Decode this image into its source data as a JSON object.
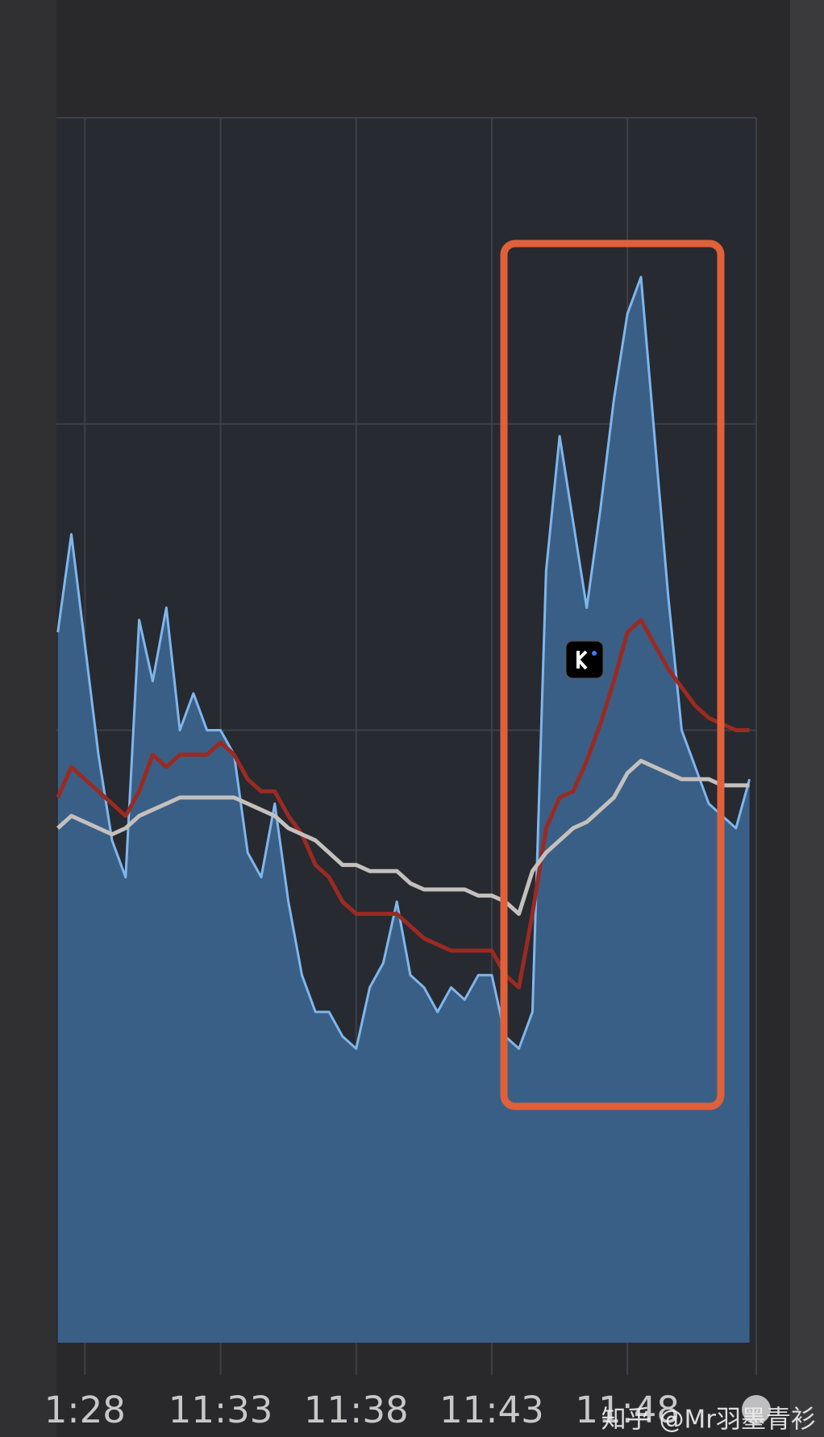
{
  "chart_data": {
    "type": "area-lines",
    "x": [
      27,
      27.5,
      28,
      28.5,
      29,
      29.5,
      30,
      30.5,
      31,
      31.5,
      32,
      32.5,
      33,
      33.5,
      34,
      34.5,
      35,
      35.5,
      36,
      36.5,
      37,
      37.5,
      38,
      38.5,
      39,
      39.5,
      40,
      40.5,
      41,
      41.5,
      42,
      42.5,
      43,
      43.5,
      44,
      44.5,
      45,
      45.5,
      46,
      46.5,
      47,
      47.5,
      48,
      48.5,
      49,
      49.5,
      50,
      50.5,
      51,
      51.5,
      52,
      52.5
    ],
    "series": [
      {
        "color": "#7fb6ec",
        "fill": "#3a5f86",
        "values": [
          58,
          66,
          57,
          48,
          41,
          38,
          59,
          54,
          60,
          50,
          53,
          50,
          50,
          48,
          40,
          38,
          44,
          36,
          30,
          27,
          27,
          25,
          24,
          29,
          31,
          36,
          30,
          29,
          27,
          29,
          28,
          30,
          30,
          25,
          24,
          27,
          63,
          74,
          67,
          60,
          68,
          77,
          84,
          87,
          74,
          61,
          50,
          47,
          44,
          43,
          42,
          46
        ]
      },
      {
        "color": "#9b2a22",
        "values": [
          44.5,
          47,
          46,
          45,
          44,
          43,
          45,
          48,
          47,
          48,
          48,
          48,
          49,
          48,
          46,
          45,
          45,
          43,
          41.5,
          39,
          38,
          36,
          35,
          35,
          35,
          35,
          34,
          33,
          32.5,
          32,
          32,
          32,
          32,
          30,
          29,
          35,
          42,
          44.5,
          45,
          47.5,
          50.5,
          54,
          58,
          59,
          57,
          55,
          53.5,
          52,
          51,
          50.5,
          50,
          50
        ]
      },
      {
        "color": "#c4c0bd",
        "values": [
          42,
          43,
          42.5,
          42,
          41.5,
          42,
          43,
          43.5,
          44,
          44.5,
          44.5,
          44.5,
          44.5,
          44.5,
          44,
          43.5,
          43,
          42,
          41.5,
          41,
          40,
          39,
          39,
          38.5,
          38.5,
          38.5,
          37.5,
          37,
          37,
          37,
          37,
          36.5,
          36.5,
          36,
          35,
          38.5,
          40,
          41,
          42,
          42.5,
          43.5,
          44.5,
          46.5,
          47.5,
          47,
          46.5,
          46,
          46,
          46,
          45.5,
          45.5,
          45.5
        ]
      }
    ],
    "xlim": [
      26.95,
      52.75
    ],
    "ylim": [
      0,
      100
    ],
    "xticks": [
      {
        "value": 28,
        "label": "1:28"
      },
      {
        "value": 33,
        "label": "11:33"
      },
      {
        "value": 38,
        "label": "11:38"
      },
      {
        "value": 43,
        "label": "11:43"
      },
      {
        "value": 48,
        "label": "11:48"
      }
    ],
    "ygrid": [
      50,
      75,
      100
    ],
    "watermark": "知乎 @Mr羽墨青衫"
  }
}
